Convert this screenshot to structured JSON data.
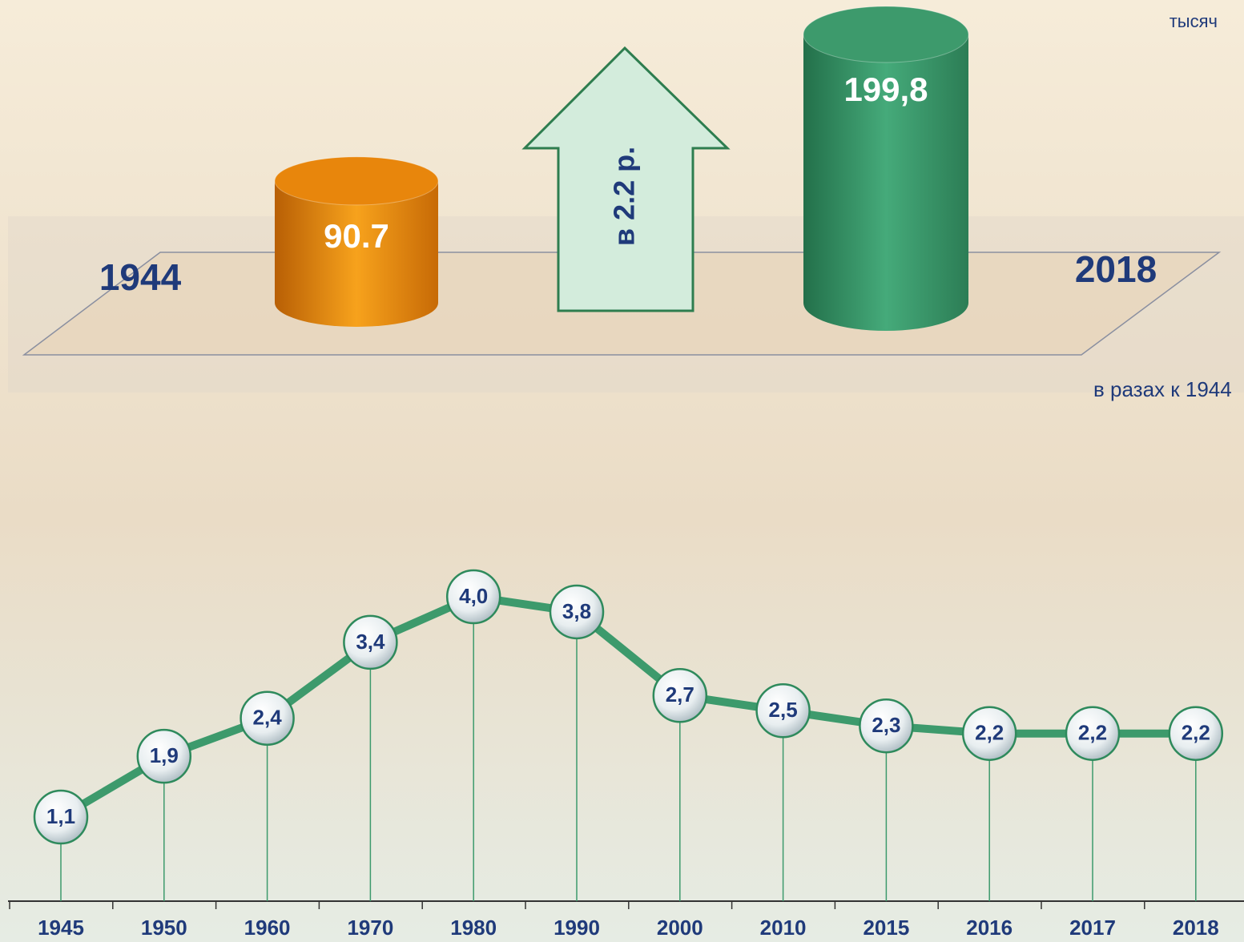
{
  "chart_data": [
    {
      "type": "cylinder",
      "unit": "тысяч",
      "categories": [
        "1944",
        "2018"
      ],
      "values": [
        90.7,
        199.8
      ],
      "value_labels": [
        "90.7",
        "199,8"
      ],
      "colors": [
        "#e8860c",
        "#3d9a6c"
      ],
      "annotation": "в 2.2 р."
    },
    {
      "type": "line",
      "subtitle": "в разах к 1944",
      "categories": [
        "1945",
        "1950",
        "1960",
        "1970",
        "1980",
        "1990",
        "2000",
        "2010",
        "2015",
        "2016",
        "2017",
        "2018"
      ],
      "values": [
        1.1,
        1.9,
        2.4,
        3.4,
        4.0,
        3.8,
        2.7,
        2.5,
        2.3,
        2.2,
        2.2,
        2.2
      ],
      "value_labels": [
        "1,1",
        "1,9",
        "2,4",
        "3,4",
        "4,0",
        "3,8",
        "2,7",
        "2,5",
        "2,3",
        "2,2",
        "2,2",
        "2,2"
      ],
      "color": "#3d9a6c"
    }
  ]
}
